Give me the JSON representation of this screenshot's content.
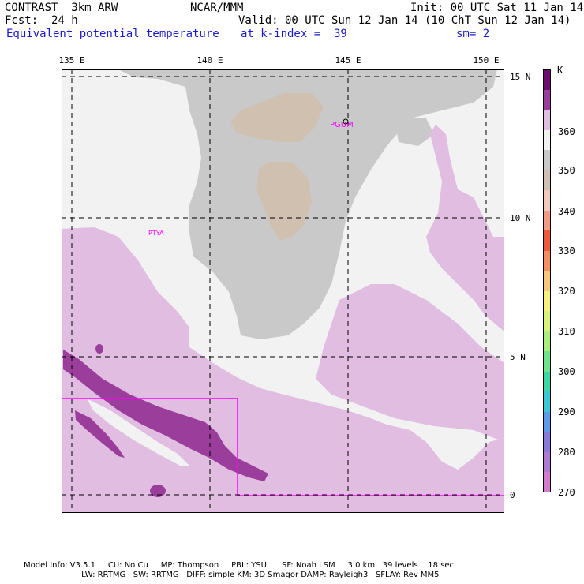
{
  "header": {
    "program": "CONTRAST  3km ARW",
    "org": "NCAR/MMM",
    "init": "Init: 00 UTC Sat 11 Jan 14",
    "fcst": "Fcst:  24 h",
    "valid": "Valid: 00 UTC Sun 12 Jan 14 (10 ChT Sun 12 Jan 14)",
    "field": "Equivalent potential temperature",
    "level": "at k-index =  39",
    "smoothing": "sm= 2"
  },
  "map": {
    "lon_labels": [
      "135 E",
      "140 E",
      "145 E",
      "150 E"
    ],
    "lat_labels": [
      "15 N",
      "10 N",
      "5 N",
      "0"
    ],
    "station_labels": [
      "PGUM",
      "PTYA"
    ]
  },
  "colorbar": {
    "unit": "K",
    "levels": [
      "360",
      "350",
      "340",
      "330",
      "320",
      "310",
      "300",
      "290",
      "280",
      "270"
    ],
    "colors": [
      "#6e0b6e",
      "#9b3d9b",
      "#e2bde2",
      "#f2f2f2",
      "#c9c9c9",
      "#cfc0b0",
      "#f3c9b9",
      "#f39b84",
      "#f05a3c",
      "#f58f5f",
      "#f8c77a",
      "#f8f07a",
      "#d9f27a",
      "#a9ee7a",
      "#6fe48a",
      "#3ad9a4",
      "#3ac9d4",
      "#5f9be8",
      "#8a7ad9",
      "#b07ad0",
      "#d67ad0"
    ]
  },
  "footer": {
    "line1": "Model Info: V3.5.1     CU: No Cu     MP: Thompson     PBL: YSU      SF: Noah LSM     3.0 km   39 levels    18 sec",
    "line2": "                       LW: RRTMG   SW: RRTMG   DIFF: simple KM: 3D Smagor DAMP: Rayleigh3   SFLAY: Rev MM5"
  }
}
